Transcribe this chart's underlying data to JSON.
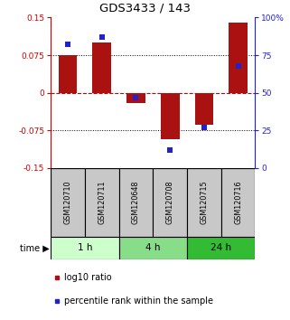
{
  "title": "GDS3433 / 143",
  "samples": [
    "GSM120710",
    "GSM120711",
    "GSM120648",
    "GSM120708",
    "GSM120715",
    "GSM120716"
  ],
  "log10_ratio": [
    0.075,
    0.1,
    -0.02,
    -0.092,
    -0.063,
    0.14
  ],
  "percentile_rank": [
    82,
    87,
    47,
    12,
    27,
    68
  ],
  "ylim_left": [
    -0.15,
    0.15
  ],
  "ylim_right": [
    0,
    100
  ],
  "yticks_left": [
    -0.15,
    -0.075,
    0,
    0.075,
    0.15
  ],
  "ytick_labels_left": [
    "-0.15",
    "-0.075",
    "0",
    "0.075",
    "0.15"
  ],
  "yticks_right": [
    0,
    25,
    50,
    75,
    100
  ],
  "ytick_labels_right": [
    "0",
    "25",
    "50",
    "75",
    "100%"
  ],
  "hlines_dotted": [
    0.075,
    -0.075
  ],
  "hline_dashed_color": "#cc0000",
  "bar_color": "#aa1111",
  "dot_color": "#2222cc",
  "bar_width": 0.55,
  "dot_size": 22,
  "legend_labels": [
    "log10 ratio",
    "percentile rank within the sample"
  ],
  "time_label": "time",
  "sample_box_color": "#c8c8c8",
  "time_colors": [
    "#ccffcc",
    "#88dd88",
    "#33bb33"
  ],
  "time_groups": [
    {
      "label": "1 h",
      "start": 0,
      "end": 2
    },
    {
      "label": "4 h",
      "start": 2,
      "end": 4
    },
    {
      "label": "24 h",
      "start": 4,
      "end": 6
    }
  ]
}
